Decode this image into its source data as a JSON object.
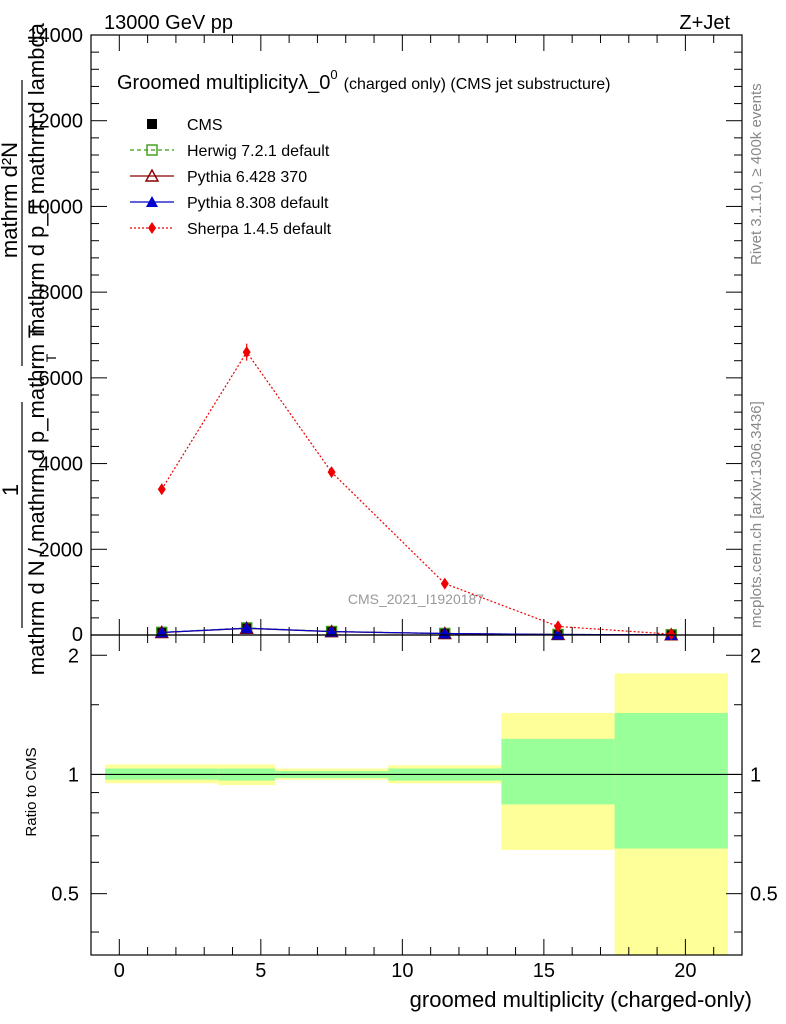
{
  "header": {
    "energy_label": "13000 GeV pp",
    "process_label": "Z+Jet"
  },
  "side_labels": {
    "rivet": "Rivet 3.1.10, ≥ 400k events",
    "mcplots": "mcplots.cern.ch [arXiv:1306.3436]"
  },
  "colors": {
    "cms": "#000000",
    "herwig": "#3a9a14",
    "pythia6": "#8b0000",
    "pythia8": "#0000cc",
    "sherpa": "#ee0000",
    "band_yellow": "#ffff99",
    "band_green": "#99ff99"
  },
  "chart_data": [
    {
      "type": "line",
      "title_main": "Groomed multiplicityλ_0",
      "title_sup": "0",
      "title_sub": "(charged only) (CMS jet substructure)",
      "watermark": "CMS_2021_I1920187",
      "ylabel_numerator": "1",
      "ylabel_denominator": "mathrm d N / mathrm d p_mathrm T",
      "ylabel_fraction_top": "mathrm d²N",
      "ylabel_fraction_bottom": "mathrm d p_T mathrm d lambda",
      "ylabel_subscript": "T",
      "xlim": [
        -1,
        22
      ],
      "ylim": [
        0,
        14000
      ],
      "yticks": [
        2000,
        4000,
        6000,
        8000,
        10000,
        12000,
        14000
      ],
      "ytick_labels": [
        "2000",
        "4000",
        "6000",
        "8000",
        "10000",
        "12000",
        "14000"
      ],
      "ytick_zero_label": "0",
      "x": [
        1.5,
        4.5,
        7.5,
        11.5,
        15.5,
        19.5
      ],
      "series": [
        {
          "name": "CMS",
          "key": "cms",
          "marker": "square",
          "values": [
            60,
            160,
            80,
            35,
            12,
            4
          ]
        },
        {
          "name": "Herwig 7.2.1 default",
          "key": "herwig",
          "marker": "open-square",
          "values": [
            62,
            165,
            82,
            36,
            13,
            5
          ]
        },
        {
          "name": "Pythia 6.428 370",
          "key": "pythia6",
          "marker": "open-triangle",
          "values": [
            58,
            155,
            78,
            34,
            12,
            4
          ]
        },
        {
          "name": "Pythia 8.308 default",
          "key": "pythia8",
          "marker": "triangle",
          "values": [
            60,
            158,
            80,
            35,
            12,
            4
          ]
        },
        {
          "name": "Sherpa 1.4.5 default",
          "key": "sherpa",
          "marker": "diamond",
          "values": [
            3400,
            6600,
            3800,
            1200,
            200,
            20
          ]
        }
      ]
    },
    {
      "type": "ratio",
      "ylabel": "Ratio to CMS",
      "xlabel": "groomed multiplicity (charged-only)",
      "xlim": [
        -1,
        22
      ],
      "ylim": [
        0.35,
        2.25
      ],
      "yticks": [
        0.5,
        1,
        2
      ],
      "ytick_labels": [
        "0.5",
        "1",
        "2"
      ],
      "xticks": [
        0,
        5,
        10,
        15,
        20
      ],
      "xtick_labels": [
        "0",
        "5",
        "10",
        "15",
        "20"
      ],
      "bins": [
        {
          "lo": -0.5,
          "hi": 3.5,
          "yellow": [
            0.95,
            1.06
          ],
          "green": [
            0.97,
            1.035
          ]
        },
        {
          "lo": 3.5,
          "hi": 5.5,
          "yellow": [
            0.94,
            1.06
          ],
          "green": [
            0.965,
            1.035
          ]
        },
        {
          "lo": 5.5,
          "hi": 9.5,
          "yellow": [
            0.97,
            1.035
          ],
          "green": [
            0.98,
            1.02
          ]
        },
        {
          "lo": 9.5,
          "hi": 13.5,
          "yellow": [
            0.95,
            1.055
          ],
          "green": [
            0.965,
            1.035
          ]
        },
        {
          "lo": 13.5,
          "hi": 17.5,
          "yellow": [
            0.645,
            1.43
          ],
          "green": [
            0.84,
            1.23
          ]
        },
        {
          "lo": 17.5,
          "hi": 21.5,
          "yellow": [
            0.35,
            1.8
          ],
          "green": [
            0.65,
            1.43
          ]
        }
      ]
    }
  ]
}
